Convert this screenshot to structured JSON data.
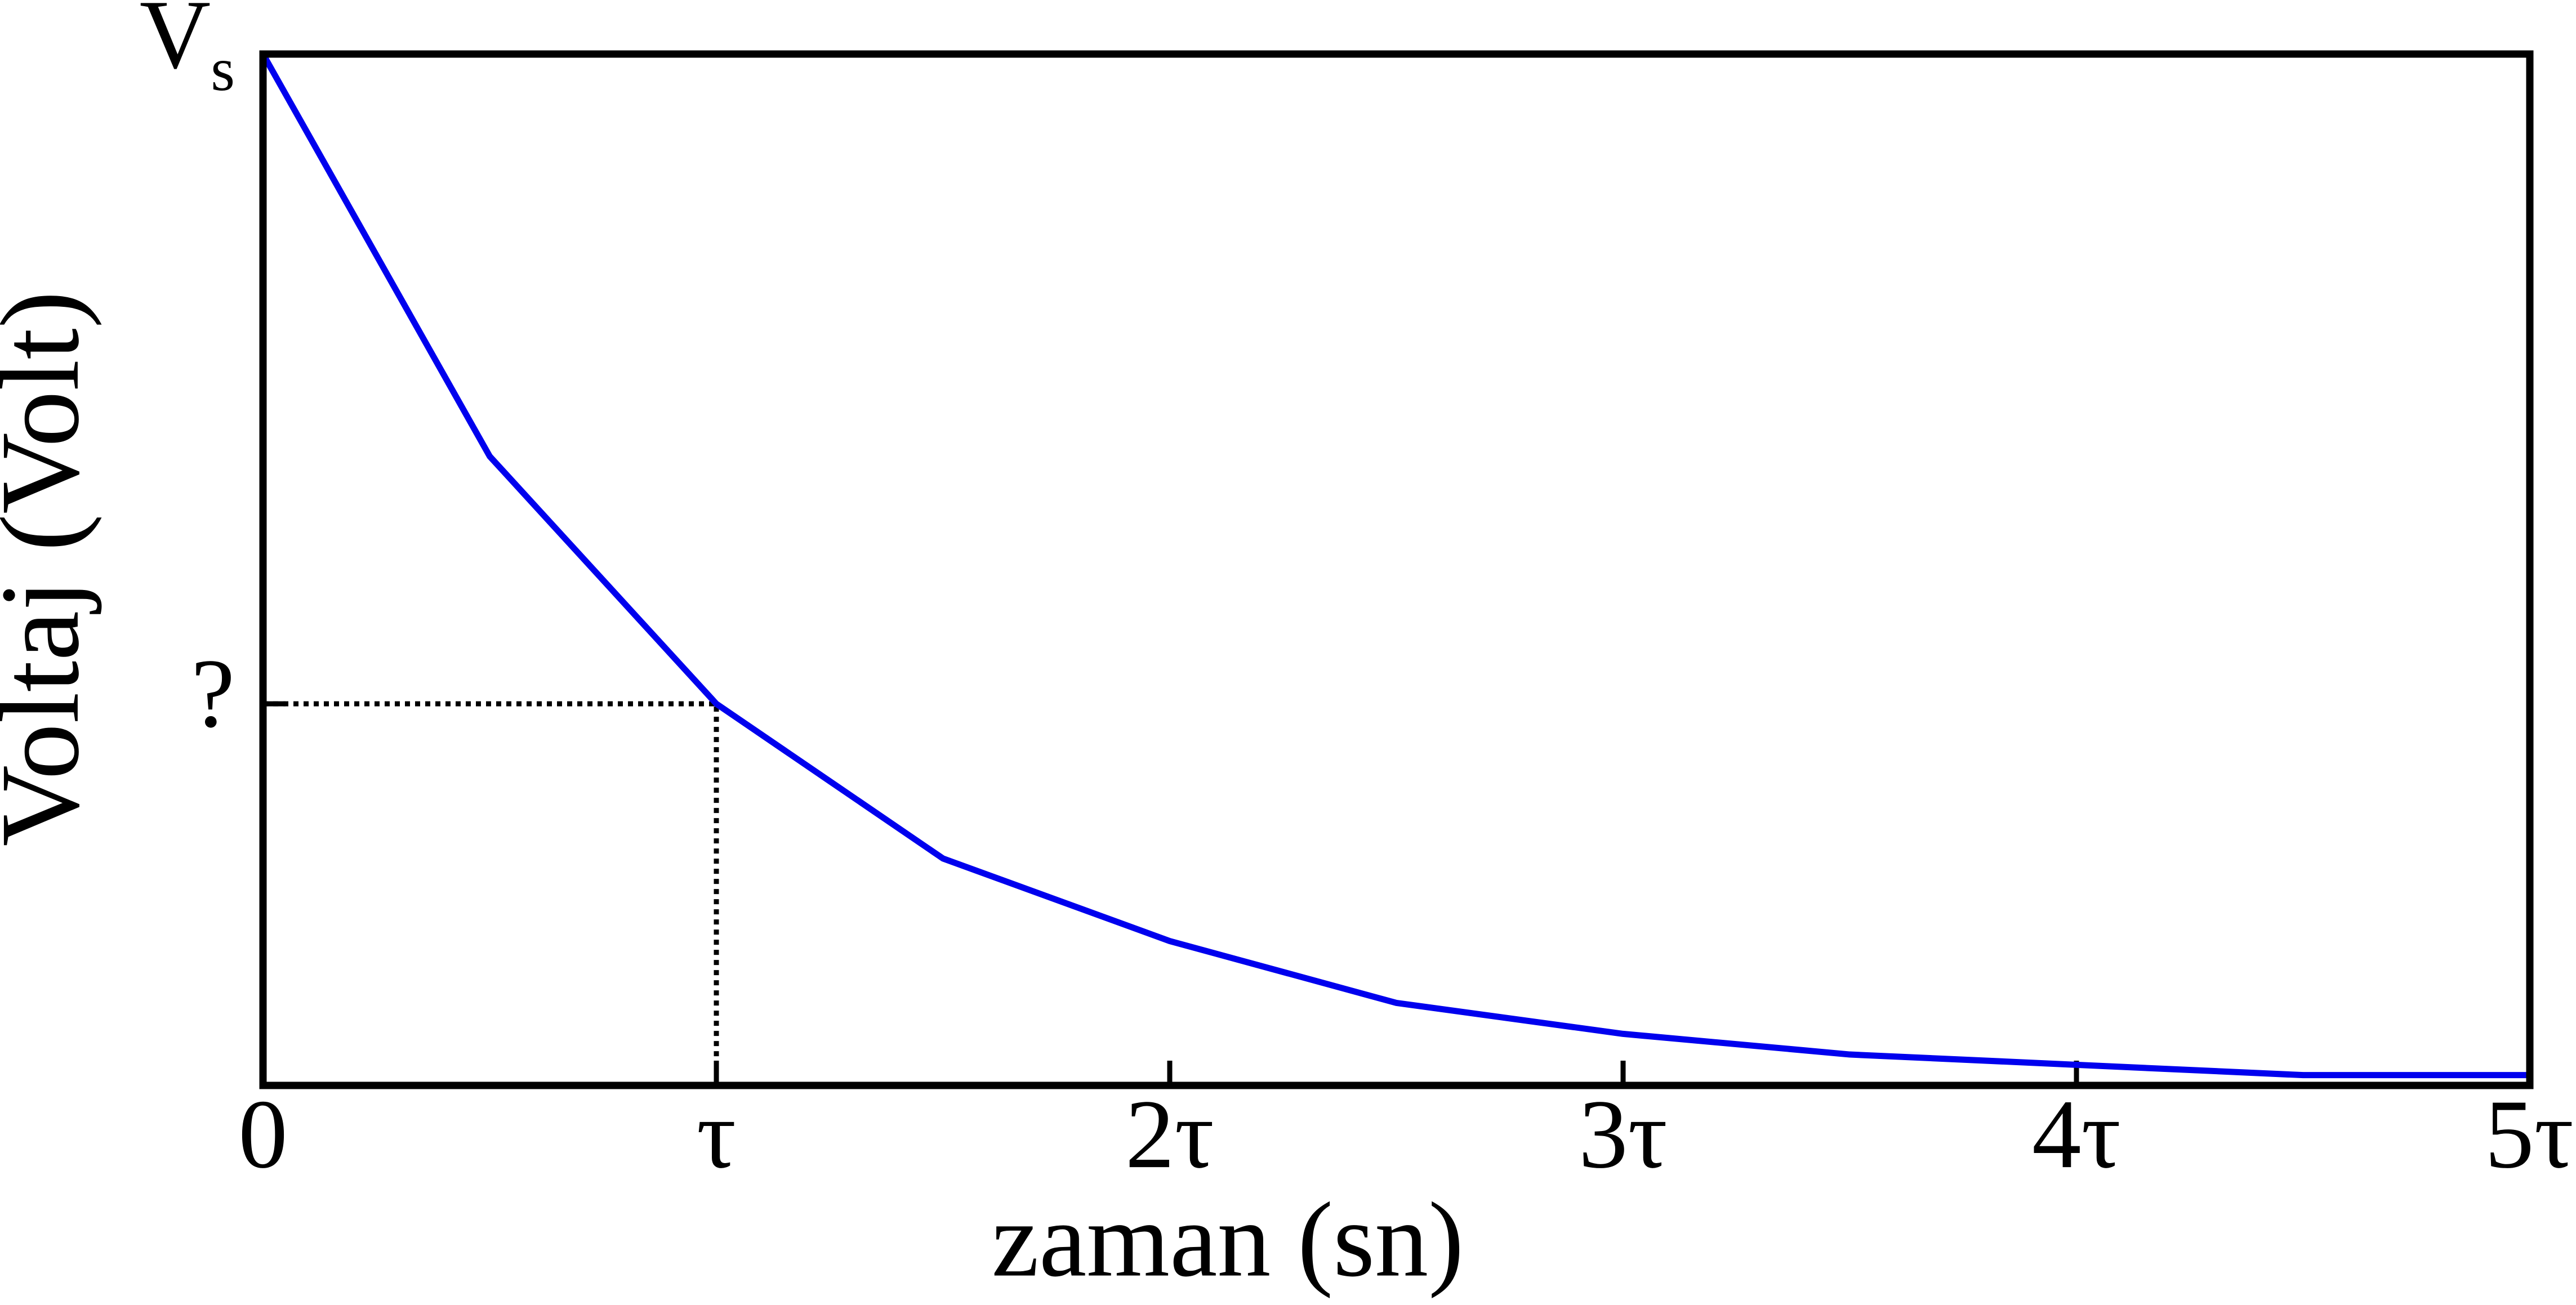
{
  "chart_data": {
    "type": "line",
    "xlabel": "zaman (sn)",
    "ylabel": "Voltaj (Volt)",
    "x": [
      0,
      0.5,
      1,
      1.5,
      2,
      2.5,
      3,
      3.5,
      4,
      4.5,
      5
    ],
    "series": [
      {
        "color": "#0000ee",
        "values": [
          1,
          0.61,
          0.37,
          0.22,
          0.14,
          0.08,
          0.05,
          0.03,
          0.02,
          0.01,
          0.01
        ]
      }
    ],
    "xlim": [
      0,
      5
    ],
    "xticks": [
      0,
      {
        "value": 1,
        "label": "τ"
      },
      {
        "value": 2,
        "label": "2τ"
      },
      {
        "value": 3,
        "label": "3τ"
      },
      {
        "value": 4,
        "label": "4τ"
      },
      {
        "value": 5,
        "label": "5τ"
      }
    ],
    "ylim": [
      0,
      1
    ],
    "yticks": [
      {
        "value": 0.37,
        "label": "?"
      },
      {
        "value": 1,
        "label": "Vs"
      }
    ],
    "grid": false
  }
}
